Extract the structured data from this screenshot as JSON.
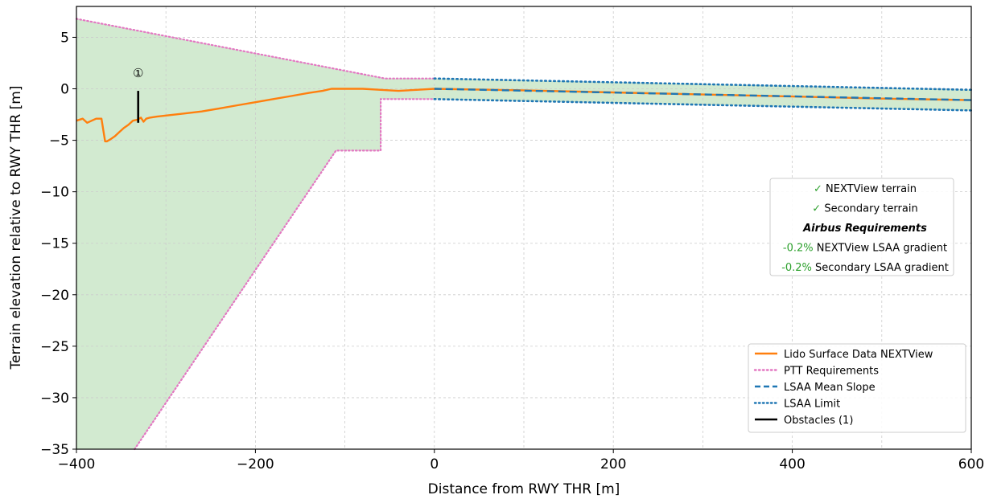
{
  "chart_data": {
    "type": "line",
    "xlabel": "Distance from RWY THR [m]",
    "ylabel": "Terrain elevation relative to RWY THR [m]",
    "xlim": [
      -400,
      600
    ],
    "ylim": [
      -35,
      8
    ],
    "x_ticks": [
      -400,
      -200,
      0,
      200,
      400,
      600
    ],
    "y_ticks": [
      5,
      0,
      -5,
      -10,
      -15,
      -20,
      -25,
      -30,
      -35
    ],
    "x_tick_labels": [
      "−400",
      "−200",
      "0",
      "200",
      "400",
      "600"
    ],
    "y_tick_labels": [
      "5",
      "0",
      "−5",
      "−10",
      "−15",
      "−20",
      "−25",
      "−30",
      "−35"
    ],
    "grid": true,
    "colors": {
      "terrain": "#ff7f0e",
      "ptt": "#e377c2",
      "lsaa": "#1f77b4",
      "obstacle": "#000000",
      "fill": "#d2ead0",
      "check": "#2ca02c"
    },
    "series": [
      {
        "name": "Lido Surface Data NEXTView",
        "style": "solid",
        "x": [
          -400,
          -393,
          -388,
          -383,
          -378,
          -372,
          -368,
          -366,
          -362,
          -357,
          -352,
          -347,
          -342,
          -337,
          -332,
          -328,
          -325,
          -322,
          -318,
          -310,
          -300,
          -280,
          -260,
          -240,
          -220,
          -200,
          -180,
          -160,
          -140,
          -125,
          -115,
          -100,
          -80,
          -60,
          -40,
          -20,
          0,
          100,
          200,
          300,
          400,
          500,
          600
        ],
        "y": [
          -3.1,
          -2.9,
          -3.3,
          -3.1,
          -2.9,
          -2.9,
          -5.1,
          -5.1,
          -4.9,
          -4.6,
          -4.2,
          -3.8,
          -3.5,
          -3.1,
          -3.0,
          -2.8,
          -3.2,
          -2.9,
          -2.8,
          -2.7,
          -2.6,
          -2.4,
          -2.2,
          -1.9,
          -1.6,
          -1.3,
          -1.0,
          -0.7,
          -0.4,
          -0.2,
          0.0,
          0.0,
          0.0,
          -0.1,
          -0.2,
          -0.1,
          0.0,
          -0.15,
          -0.35,
          -0.55,
          -0.75,
          -0.95,
          -1.1
        ]
      },
      {
        "name": "PTT Requirements",
        "style": "dotted",
        "upper": {
          "x": [
            -400,
            -55,
            0
          ],
          "y": [
            6.8,
            1.0,
            1.0
          ]
        },
        "lower": {
          "x": [
            -335,
            -110,
            -60,
            -60,
            0
          ],
          "y": [
            -35,
            -6.0,
            -6.0,
            -1.0,
            -1.0
          ]
        }
      },
      {
        "name": "LSAA Mean Slope",
        "style": "dashed",
        "x": [
          0,
          600
        ],
        "y": [
          0.0,
          -1.1
        ]
      },
      {
        "name": "LSAA Limit",
        "style": "dotted",
        "upper": {
          "x": [
            0,
            600
          ],
          "y": [
            1.0,
            -0.1
          ]
        },
        "lower": {
          "x": [
            0,
            600
          ],
          "y": [
            -1.0,
            -2.1
          ]
        }
      },
      {
        "name": "Obstacles (1)",
        "style": "solid",
        "x": [
          -331,
          -331
        ],
        "y": [
          -3.3,
          -0.2
        ],
        "marker": "①"
      }
    ],
    "legend": {
      "placement": "lower-right",
      "items": [
        {
          "label": "Lido Surface Data NEXTView",
          "color": "#ff7f0e",
          "style": "solid"
        },
        {
          "label": "PTT Requirements",
          "color": "#e377c2",
          "style": "dotted"
        },
        {
          "label": "LSAA Mean Slope",
          "color": "#1f77b4",
          "style": "dashed"
        },
        {
          "label": "LSAA Limit",
          "color": "#1f77b4",
          "style": "dotted"
        },
        {
          "label": "Obstacles (1)",
          "color": "#000000",
          "style": "solid"
        }
      ]
    },
    "info_box": {
      "placement": "center-right",
      "rows": [
        {
          "prefix": "✓",
          "text": "NEXTView terrain",
          "kind": "check"
        },
        {
          "prefix": "✓",
          "text": "Secondary terrain",
          "kind": "check"
        },
        {
          "prefix": "",
          "text": "Airbus Requirements",
          "kind": "bold"
        },
        {
          "prefix": "-0.2%",
          "text": "NEXTView LSAA gradient",
          "kind": "value"
        },
        {
          "prefix": "-0.2%",
          "text": "Secondary LSAA gradient",
          "kind": "value"
        }
      ]
    }
  }
}
